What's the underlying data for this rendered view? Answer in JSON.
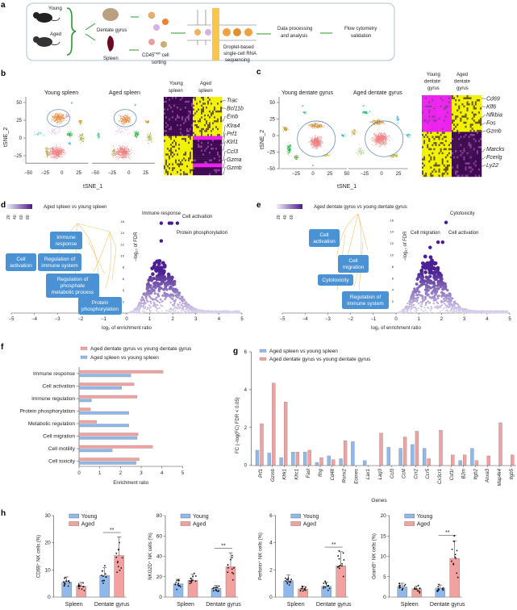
{
  "panel_labels": {
    "a": "a",
    "b": "b",
    "c": "c",
    "d": "d",
    "e": "e",
    "f": "f",
    "g": "g",
    "h": "h"
  },
  "a": {
    "young": "Young",
    "aged": "Aged",
    "dentate": "Dentate gyrus",
    "spleen": "Spleen",
    "sort1": "CD45",
    "sort_sup": "high",
    "sort2": " cell",
    "sort3": "sorting",
    "seq1": "Droplet-based",
    "seq2": "single-cell RNA",
    "seq3": "sequencing",
    "proc1": "Data processing",
    "proc2": "and analysis",
    "flow1": "Flow cytometry",
    "flow2": "validation"
  },
  "b": {
    "young_title": "Young spleen",
    "aged_title": "Aged spleen",
    "ylabel": "tSNE_2",
    "xlabel": "tSNE_1",
    "yticks": [
      "50",
      "25",
      "0",
      "−25"
    ],
    "xticks": [
      "−50",
      "−25",
      "0",
      "25"
    ],
    "heat_young": [
      "Young",
      "spleen"
    ],
    "heat_aged": [
      "Aged",
      "spleen"
    ],
    "genes": [
      "Trac",
      "Bcl11b",
      "Emb",
      "Klra4",
      "Prf1",
      "Klrl1",
      "Ccl3",
      "Gzma",
      "Gzmb"
    ]
  },
  "c": {
    "young_title": "Young dentate gyrus",
    "aged_title": "Aged dentate gyrus",
    "ylabel": "tSNE_2",
    "xlabel": "tSNE_1",
    "yticks": [
      "50",
      "25",
      "0",
      "−25",
      "−50"
    ],
    "xticks": [
      "−25",
      "0",
      "25",
      "50"
    ],
    "xticks2": [
      "−25",
      "0",
      "25"
    ],
    "heat_young": [
      "Young",
      "dentate",
      "gyrus"
    ],
    "heat_aged": [
      "Aged",
      "dentate",
      "gyrus"
    ],
    "genes": [
      "Cd69",
      "Klf6",
      "Nfkbia",
      "Fos",
      "Gzmb",
      "Marcks",
      "Fcerlg",
      "Ly22"
    ]
  },
  "colors": {
    "blue": "#8fb8ec",
    "red": "#f2a0a0",
    "go_box": "#4b92d4",
    "purple": "#4a1a8c",
    "heat_purple": "#3d0a4f",
    "heat_yellow": "#f2f200",
    "heat_magenta": "#ee22ee",
    "arrow_green": "#2a9a2a"
  },
  "d": {
    "title": "Aged spleen vs young spleen",
    "colorbar_ticks": [
      "20",
      "40",
      "60",
      "80"
    ],
    "xlabel": "log₂ of enrichment ratio",
    "ylabel": "−log₁₀ of FDR",
    "xticks": [
      "−5",
      "−4",
      "−3",
      "−2",
      "−1",
      "0",
      "1",
      "2",
      "3",
      "4",
      "5"
    ],
    "yticks": [
      "2",
      "4",
      "6",
      "8",
      "10",
      "12",
      "14",
      "16"
    ],
    "annotations": [
      "Immune response",
      "Cell activation",
      "Protein phosphorylation"
    ],
    "go_boxes": [
      [
        "Immune",
        "response"
      ],
      [
        "Cell",
        "activation"
      ],
      [
        "Regulation of",
        "immune system"
      ],
      [
        "Regulation of",
        "phosphate",
        "metabolic process"
      ],
      [
        "Protein",
        "phosphorylation"
      ]
    ]
  },
  "e": {
    "title": "Aged dentate gyrus vs young dentate gyrus",
    "colorbar_ticks": [
      "20",
      "40",
      "60"
    ],
    "xlabel": "log₂ of enrichment ratio",
    "ylabel": "−log₁₀ of FDR",
    "xticks": [
      "−5",
      "−4",
      "−3",
      "−2",
      "−1",
      "0",
      "1",
      "2",
      "3",
      "4",
      "5"
    ],
    "yticks": [
      "2",
      "4",
      "6",
      "8",
      "10",
      "12",
      "14",
      "16"
    ],
    "annotations": [
      "Cytotoxicity",
      "Cell migration",
      "Cell activation"
    ],
    "go_boxes": [
      [
        "Cell",
        "activation"
      ],
      [
        "Cell",
        "migration"
      ],
      [
        "Cytotoxicity"
      ],
      [
        "Regulation of",
        "immune system"
      ]
    ]
  },
  "chart_data": [
    {
      "id": "f",
      "type": "bar",
      "orientation": "horizontal",
      "categories": [
        "Immune response",
        "Cell activation",
        "Immune regulation",
        "Protein phosphorylation",
        "Metabolic regulation",
        "Cell migration",
        "Cell motility",
        "Cell toxicity"
      ],
      "series": [
        {
          "name": "Aged spleen vs young spleen",
          "color": "#8fb8ec",
          "values": [
            2.5,
            2.05,
            0.6,
            2.4,
            2.4,
            2.8,
            1.6,
            2.75
          ]
        },
        {
          "name": "Aged dentate gyrus vs young dentate gyrus",
          "color": "#f2a0a0",
          "values": [
            4.05,
            2.65,
            2.8,
            0.55,
            0.85,
            2.85,
            3.55,
            2.9
          ]
        }
      ],
      "xlabel": "Enrichment ratio",
      "xlim": [
        0,
        5
      ],
      "xticks": [
        "0",
        "1",
        "2",
        "3",
        "4",
        "5"
      ]
    },
    {
      "id": "g",
      "type": "bar",
      "categories": [
        "Prf1",
        "Gzmb",
        "Klrk1",
        "Klrc1",
        "Fasl",
        "Ifng",
        "Cd48",
        "Runx2",
        "Eomes",
        "Lax1",
        "Lag3",
        "Ccl3",
        "Ccl4",
        "Ccr2",
        "Ccr5",
        "Cx3cr1",
        "Csf1r",
        "B2m",
        "Itgb2",
        "Anxa3",
        "Map4k4",
        "Itgb5"
      ],
      "series": [
        {
          "name": "Aged spleen vs young spleen",
          "color": "#8fb8ec",
          "values": [
            0.8,
            0.65,
            0.4,
            0.7,
            0.7,
            0.15,
            0.5,
            0.35,
            1.25,
            0.25,
            0,
            0.95,
            0.9,
            1.1,
            0.9,
            0,
            0,
            0.25,
            0.9,
            0,
            0,
            0
          ]
        },
        {
          "name": "Aged dentate gyrus vs young dentate gyrus",
          "color": "#f2a0a0",
          "values": [
            2.2,
            4.35,
            3.35,
            0.7,
            0.8,
            0.4,
            0.3,
            1.3,
            0,
            0,
            1.7,
            0,
            1.5,
            1.8,
            0.35,
            1.85,
            0.55,
            0.55,
            0.25,
            0.5,
            2.25,
            0.55
          ]
        }
      ],
      "xlabel": "Genes",
      "ylabel": "FC (−log(FC) FDR < 0.05)",
      "ylim": [
        0,
        6
      ],
      "yticks": [
        "0",
        "2",
        "4",
        "6"
      ]
    },
    {
      "id": "h",
      "type": "bar",
      "groups": [
        "Spleen",
        "Dentate gyrus"
      ],
      "legend": [
        "Young",
        "Aged"
      ],
      "significance": "**",
      "panels": [
        {
          "ylabel": "CD69⁺ NK cells (%)",
          "ylim": [
            0,
            30
          ],
          "yticks": [
            "0",
            "10",
            "20",
            "30"
          ],
          "young": [
            5.5,
            8.0
          ],
          "aged": [
            4.0,
            15.3
          ]
        },
        {
          "ylabel": "NKG2D⁺ NK cells (%)",
          "ylim": [
            0,
            80
          ],
          "yticks": [
            "0",
            "20",
            "40",
            "60",
            "80"
          ],
          "young": [
            13,
            8.5
          ],
          "aged": [
            16.5,
            30
          ]
        },
        {
          "ylabel": "Perforin⁺ NK cells (%)",
          "ylim": [
            0,
            6
          ],
          "yticks": [
            "0",
            "2",
            "4",
            "6"
          ],
          "young": [
            1.2,
            0.8
          ],
          "aged": [
            0.6,
            2.3
          ]
        },
        {
          "ylabel": "GramB⁺ NK cells (%)",
          "ylim": [
            0,
            20
          ],
          "yticks": [
            "0",
            "5",
            "10",
            "15",
            "20"
          ],
          "young": [
            2.5,
            2.2
          ],
          "aged": [
            2.0,
            9.5
          ]
        }
      ]
    }
  ]
}
